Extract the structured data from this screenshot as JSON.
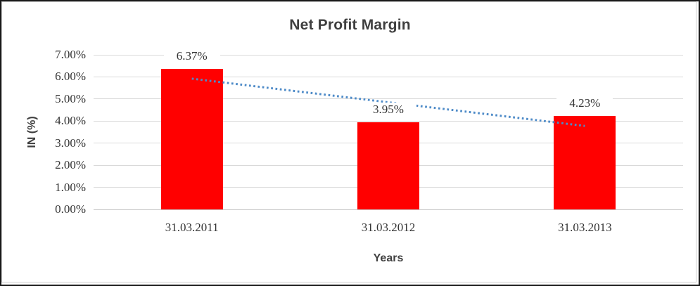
{
  "chart_data": {
    "type": "bar",
    "title": "Net Profit Margin",
    "categories": [
      "31.03.2011",
      "31.03.2012",
      "31.03.2013"
    ],
    "values": [
      6.37,
      3.95,
      4.23
    ],
    "data_labels": [
      "6.37%",
      "3.95%",
      "4.23%"
    ],
    "xlabel": "Years",
    "ylabel": "IN (%)",
    "ylim": [
      0,
      7
    ],
    "ytick_labels": [
      "0.00%",
      "1.00%",
      "2.00%",
      "3.00%",
      "4.00%",
      "5.00%",
      "6.00%",
      "7.00%"
    ],
    "grid": true,
    "legend": false,
    "bar_color": "#ff0000",
    "trendline": {
      "type": "linear",
      "style": "dotted",
      "color": "#4e8bc8",
      "start_value": 5.92,
      "end_value": 3.78
    },
    "colors": {
      "title_text": "#3f3f3f",
      "axis_text": "#333333",
      "gridline": "#d9d9d9",
      "axis_line": "#c6c6c6",
      "frame_border": "#d0d0d0",
      "outer_border": "#1a1a1a",
      "background": "#ffffff",
      "data_label_bg": "#ffffff"
    }
  }
}
